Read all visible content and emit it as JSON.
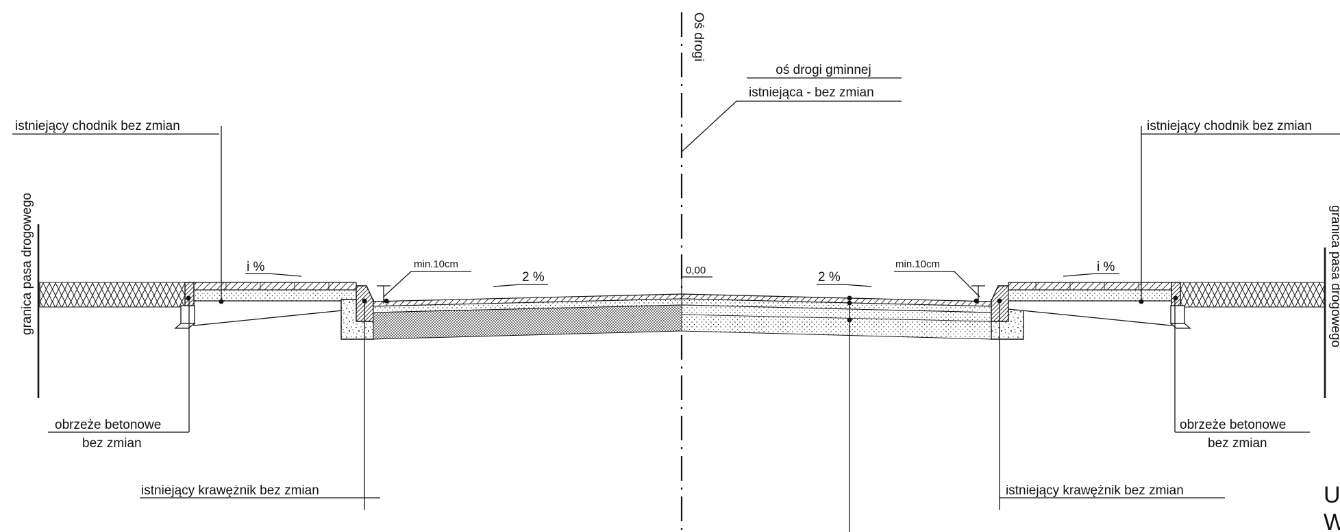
{
  "drawing": {
    "axis_label": "Oś drogi",
    "axis_callout_line1": "oś drogi gminnej",
    "axis_callout_line2": "istniejąca - bez zmian",
    "elevation": "0,00",
    "left": {
      "boundary": "granica pasa drogowego",
      "sidewalk": "istniejący chodnik bez zmian",
      "slope_sidewalk": "i %",
      "clearance": "min.10cm",
      "slope_road": "2 %",
      "edging_line1": "obrzeże betonowe",
      "edging_line2": "bez zmian",
      "curb": "istniejący krawężnik bez zmian"
    },
    "right": {
      "boundary": "granica pasa drogowego",
      "sidewalk": "istniejący chodnik bez zmian",
      "slope_sidewalk": "i %",
      "clearance": "min.10cm",
      "slope_road": "2 %",
      "edging_line1": "obrzeże betonowe",
      "edging_line2": "bez zmian",
      "curb": "istniejący krawężnik bez zmian"
    },
    "corner_text_1": "U",
    "corner_text_2": "W"
  }
}
